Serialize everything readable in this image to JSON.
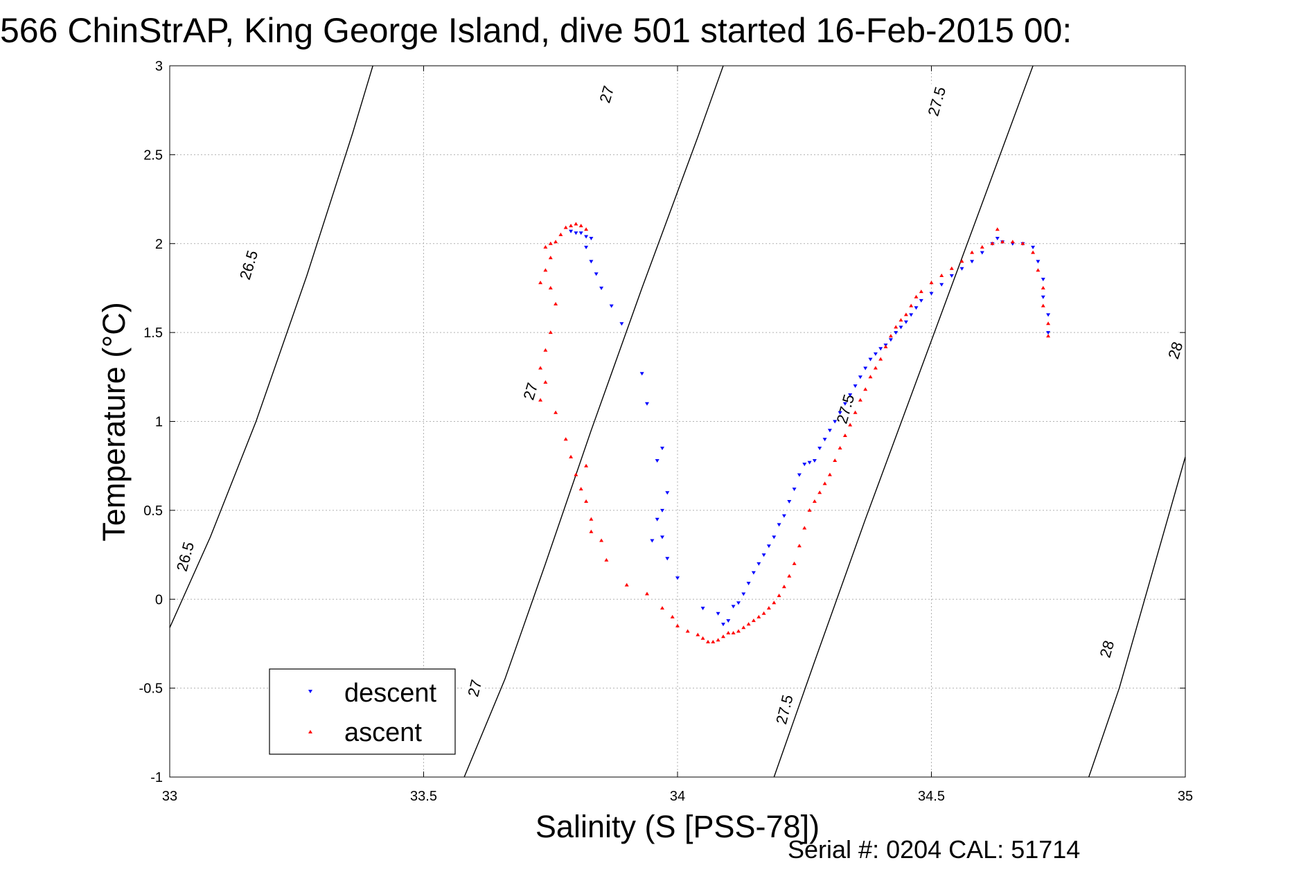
{
  "title": "566 ChinStrAP, King George Island, dive 501 started 16-Feb-2015 00:",
  "footer": "Serial #: 0204  CAL: 51714",
  "chart_data": {
    "type": "scatter",
    "title": "566 ChinStrAP, King George Island, dive 501 started 16-Feb-2015 00:",
    "xlabel": "Salinity (S [PSS-78])",
    "ylabel": "Temperature (°C)",
    "xlim": [
      33,
      35
    ],
    "ylim": [
      -1,
      3
    ],
    "x_ticks": [
      "33",
      "33.5",
      "34",
      "34.5",
      "35"
    ],
    "y_ticks": [
      "-1",
      "-0.5",
      "0",
      "0.5",
      "1",
      "1.5",
      "2",
      "2.5",
      "3"
    ],
    "grid": true,
    "legend_position": "bottom-left",
    "legend": [
      "descent",
      "ascent"
    ],
    "density_contours": [
      {
        "label": "26.5",
        "points": [
          [
            33.0,
            -0.16
          ],
          [
            33.08,
            0.35
          ],
          [
            33.17,
            1.0
          ],
          [
            33.27,
            1.82
          ],
          [
            33.36,
            2.62
          ],
          [
            33.4,
            3.0
          ]
        ]
      },
      {
        "label": "27",
        "points": [
          [
            33.58,
            -1.0
          ],
          [
            33.66,
            -0.45
          ],
          [
            33.74,
            0.2
          ],
          [
            33.83,
            0.95
          ],
          [
            33.93,
            1.75
          ],
          [
            34.04,
            2.6
          ],
          [
            34.09,
            3.0
          ]
        ]
      },
      {
        "label": "27.5",
        "points": [
          [
            34.19,
            -1.0
          ],
          [
            34.27,
            -0.35
          ],
          [
            34.37,
            0.45
          ],
          [
            34.48,
            1.3
          ],
          [
            34.59,
            2.15
          ],
          [
            34.7,
            3.0
          ]
        ]
      },
      {
        "label": "28",
        "points": [
          [
            34.81,
            -1.0
          ],
          [
            34.87,
            -0.5
          ],
          [
            34.95,
            0.3
          ],
          [
            35.0,
            0.8
          ]
        ]
      }
    ],
    "contour_labels": [
      {
        "text": "26.5",
        "x": 33.155,
        "y": 1.88,
        "angle": -73
      },
      {
        "text": "26.5",
        "x": 33.03,
        "y": 0.24,
        "angle": -75
      },
      {
        "text": "27",
        "x": 33.86,
        "y": 2.84,
        "angle": -73
      },
      {
        "text": "27",
        "x": 33.71,
        "y": 1.17,
        "angle": -73
      },
      {
        "text": "27",
        "x": 33.6,
        "y": -0.5,
        "angle": -76
      },
      {
        "text": "27.5",
        "x": 34.51,
        "y": 2.8,
        "angle": -74
      },
      {
        "text": "27.5",
        "x": 34.33,
        "y": 1.07,
        "angle": -74
      },
      {
        "text": "27.5",
        "x": 34.21,
        "y": -0.62,
        "angle": -76
      },
      {
        "text": "28",
        "x": 34.98,
        "y": 1.4,
        "angle": -72
      },
      {
        "text": "28",
        "x": 34.845,
        "y": -0.28,
        "angle": -74
      }
    ],
    "series": [
      {
        "name": "descent",
        "color": "#0000ff",
        "marker": "triangle-down",
        "points": [
          [
            33.79,
            2.07
          ],
          [
            33.8,
            2.06
          ],
          [
            33.81,
            2.06
          ],
          [
            33.82,
            2.04
          ],
          [
            33.83,
            2.03
          ],
          [
            33.82,
            1.98
          ],
          [
            33.83,
            1.9
          ],
          [
            33.84,
            1.83
          ],
          [
            33.85,
            1.75
          ],
          [
            33.87,
            1.65
          ],
          [
            33.89,
            1.55
          ],
          [
            33.93,
            1.27
          ],
          [
            33.94,
            1.1
          ],
          [
            33.97,
            0.85
          ],
          [
            33.96,
            0.78
          ],
          [
            33.98,
            0.6
          ],
          [
            33.97,
            0.5
          ],
          [
            33.96,
            0.45
          ],
          [
            33.95,
            0.33
          ],
          [
            33.97,
            0.35
          ],
          [
            33.98,
            0.23
          ],
          [
            34.0,
            0.12
          ],
          [
            34.05,
            -0.05
          ],
          [
            34.08,
            -0.08
          ],
          [
            34.09,
            -0.14
          ],
          [
            34.1,
            -0.12
          ],
          [
            34.11,
            -0.04
          ],
          [
            34.12,
            -0.02
          ],
          [
            34.13,
            0.03
          ],
          [
            34.14,
            0.09
          ],
          [
            34.15,
            0.15
          ],
          [
            34.16,
            0.2
          ],
          [
            34.17,
            0.25
          ],
          [
            34.18,
            0.3
          ],
          [
            34.19,
            0.35
          ],
          [
            34.2,
            0.42
          ],
          [
            34.21,
            0.47
          ],
          [
            34.22,
            0.55
          ],
          [
            34.23,
            0.62
          ],
          [
            34.24,
            0.7
          ],
          [
            34.25,
            0.76
          ],
          [
            34.26,
            0.77
          ],
          [
            34.27,
            0.78
          ],
          [
            34.28,
            0.85
          ],
          [
            34.29,
            0.9
          ],
          [
            34.3,
            0.95
          ],
          [
            34.31,
            1.0
          ],
          [
            34.32,
            1.05
          ],
          [
            34.33,
            1.1
          ],
          [
            34.34,
            1.15
          ],
          [
            34.35,
            1.2
          ],
          [
            34.36,
            1.25
          ],
          [
            34.37,
            1.3
          ],
          [
            34.38,
            1.35
          ],
          [
            34.39,
            1.38
          ],
          [
            34.4,
            1.41
          ],
          [
            34.41,
            1.43
          ],
          [
            34.42,
            1.46
          ],
          [
            34.43,
            1.5
          ],
          [
            34.44,
            1.53
          ],
          [
            34.45,
            1.56
          ],
          [
            34.46,
            1.6
          ],
          [
            34.47,
            1.64
          ],
          [
            34.48,
            1.68
          ],
          [
            34.5,
            1.72
          ],
          [
            34.52,
            1.77
          ],
          [
            34.54,
            1.82
          ],
          [
            34.56,
            1.86
          ],
          [
            34.58,
            1.9
          ],
          [
            34.6,
            1.95
          ],
          [
            34.62,
            2.0
          ],
          [
            34.63,
            2.03
          ],
          [
            34.64,
            2.01
          ],
          [
            34.66,
            2.0
          ],
          [
            34.68,
            2.0
          ],
          [
            34.7,
            1.98
          ],
          [
            34.71,
            1.9
          ],
          [
            34.72,
            1.8
          ],
          [
            34.72,
            1.7
          ],
          [
            34.73,
            1.6
          ],
          [
            34.73,
            1.5
          ]
        ]
      },
      {
        "name": "ascent",
        "color": "#ff0000",
        "marker": "triangle-up",
        "points": [
          [
            33.74,
            1.98
          ],
          [
            33.75,
            2.0
          ],
          [
            33.76,
            2.01
          ],
          [
            33.77,
            2.05
          ],
          [
            33.78,
            2.09
          ],
          [
            33.79,
            2.1
          ],
          [
            33.8,
            2.11
          ],
          [
            33.81,
            2.1
          ],
          [
            33.82,
            2.08
          ],
          [
            33.75,
            1.92
          ],
          [
            33.74,
            1.85
          ],
          [
            33.73,
            1.78
          ],
          [
            33.75,
            1.75
          ],
          [
            33.76,
            1.66
          ],
          [
            33.75,
            1.5
          ],
          [
            33.74,
            1.4
          ],
          [
            33.73,
            1.3
          ],
          [
            33.74,
            1.22
          ],
          [
            33.73,
            1.12
          ],
          [
            33.76,
            1.05
          ],
          [
            33.78,
            0.9
          ],
          [
            33.79,
            0.8
          ],
          [
            33.8,
            0.7
          ],
          [
            33.82,
            0.75
          ],
          [
            33.81,
            0.62
          ],
          [
            33.82,
            0.55
          ],
          [
            33.83,
            0.45
          ],
          [
            33.83,
            0.38
          ],
          [
            33.85,
            0.33
          ],
          [
            33.86,
            0.22
          ],
          [
            33.9,
            0.08
          ],
          [
            33.94,
            0.03
          ],
          [
            33.97,
            -0.05
          ],
          [
            33.99,
            -0.1
          ],
          [
            34.0,
            -0.15
          ],
          [
            34.02,
            -0.18
          ],
          [
            34.04,
            -0.2
          ],
          [
            34.05,
            -0.22
          ],
          [
            34.06,
            -0.24
          ],
          [
            34.07,
            -0.24
          ],
          [
            34.08,
            -0.23
          ],
          [
            34.09,
            -0.21
          ],
          [
            34.1,
            -0.19
          ],
          [
            34.11,
            -0.19
          ],
          [
            34.12,
            -0.18
          ],
          [
            34.13,
            -0.16
          ],
          [
            34.14,
            -0.14
          ],
          [
            34.15,
            -0.12
          ],
          [
            34.16,
            -0.1
          ],
          [
            34.17,
            -0.08
          ],
          [
            34.18,
            -0.05
          ],
          [
            34.19,
            -0.02
          ],
          [
            34.2,
            0.02
          ],
          [
            34.21,
            0.07
          ],
          [
            34.22,
            0.13
          ],
          [
            34.23,
            0.2
          ],
          [
            34.24,
            0.3
          ],
          [
            34.25,
            0.4
          ],
          [
            34.26,
            0.5
          ],
          [
            34.27,
            0.55
          ],
          [
            34.28,
            0.6
          ],
          [
            34.29,
            0.65
          ],
          [
            34.3,
            0.7
          ],
          [
            34.31,
            0.78
          ],
          [
            34.32,
            0.85
          ],
          [
            34.33,
            0.92
          ],
          [
            34.34,
            0.98
          ],
          [
            34.35,
            1.05
          ],
          [
            34.36,
            1.12
          ],
          [
            34.37,
            1.18
          ],
          [
            34.38,
            1.25
          ],
          [
            34.39,
            1.3
          ],
          [
            34.4,
            1.35
          ],
          [
            34.41,
            1.42
          ],
          [
            34.42,
            1.48
          ],
          [
            34.43,
            1.53
          ],
          [
            34.44,
            1.57
          ],
          [
            34.45,
            1.6
          ],
          [
            34.46,
            1.65
          ],
          [
            34.47,
            1.7
          ],
          [
            34.48,
            1.73
          ],
          [
            34.5,
            1.78
          ],
          [
            34.52,
            1.82
          ],
          [
            34.54,
            1.86
          ],
          [
            34.56,
            1.9
          ],
          [
            34.58,
            1.95
          ],
          [
            34.6,
            1.98
          ],
          [
            34.62,
            2.0
          ],
          [
            34.63,
            2.08
          ],
          [
            34.64,
            2.01
          ],
          [
            34.66,
            2.01
          ],
          [
            34.68,
            2.0
          ],
          [
            34.7,
            1.95
          ],
          [
            34.71,
            1.85
          ],
          [
            34.72,
            1.75
          ],
          [
            34.72,
            1.65
          ],
          [
            34.73,
            1.55
          ],
          [
            34.73,
            1.48
          ]
        ]
      }
    ]
  }
}
